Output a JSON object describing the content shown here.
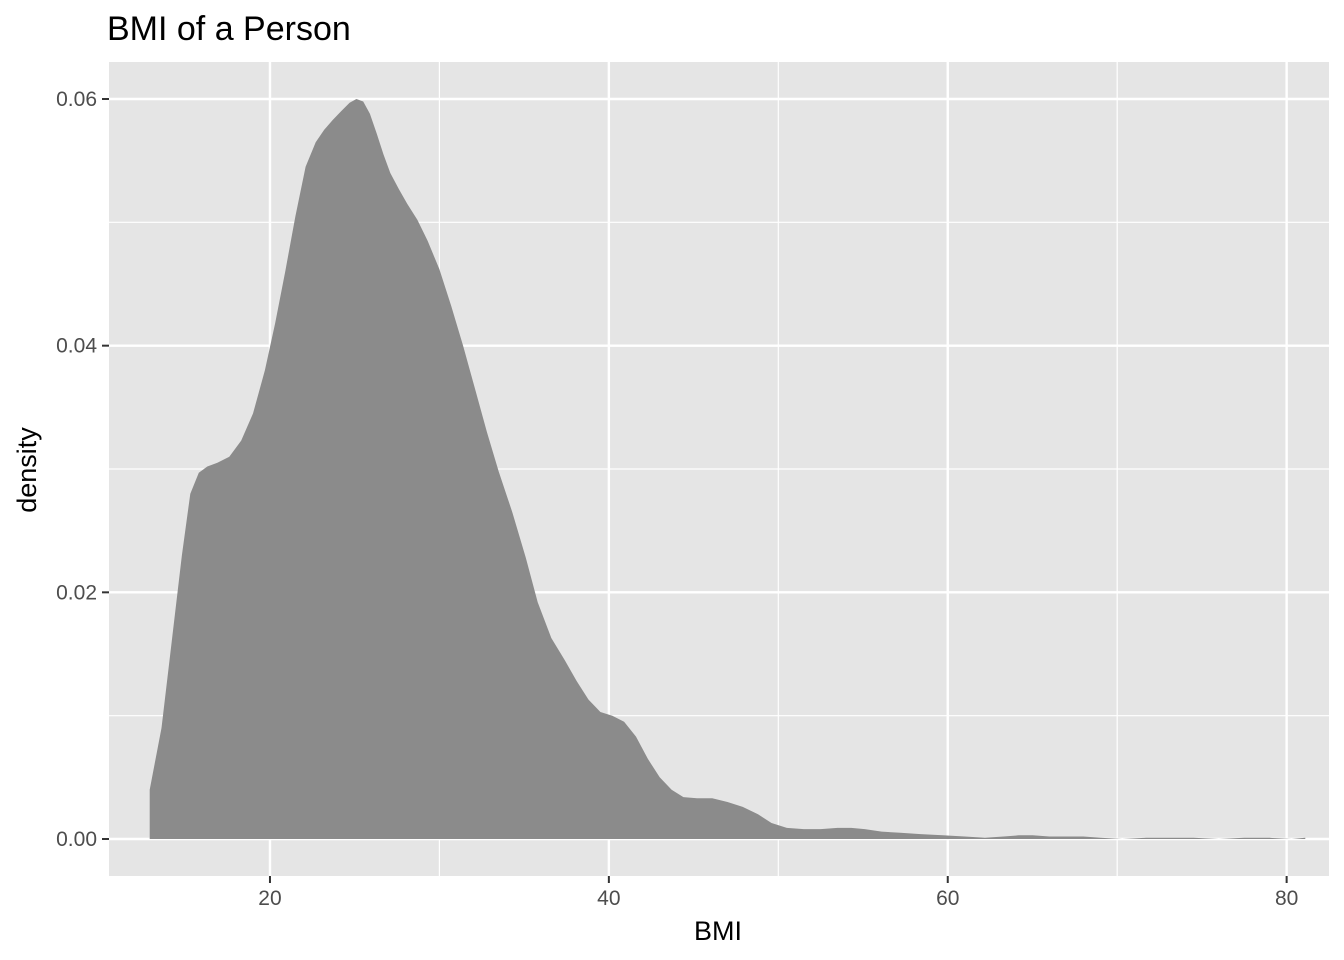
{
  "chart_data": {
    "type": "area",
    "title": "BMI of a Person",
    "xlabel": "BMI",
    "ylabel": "density",
    "xlim": [
      10.5,
      82.5
    ],
    "ylim": [
      -0.003,
      0.063
    ],
    "x_ticks": [
      20,
      40,
      60,
      80
    ],
    "y_ticks": [
      0.0,
      0.02,
      0.04,
      0.06
    ],
    "x_tick_labels": [
      "20",
      "40",
      "60",
      "80"
    ],
    "y_tick_labels": [
      "0.00",
      "0.02",
      "0.04",
      "0.06"
    ],
    "grid": true,
    "colors": {
      "panel": "#e5e5e5",
      "grid": "#ffffff",
      "fill": "#878787",
      "tick_text": "#4d4d4d"
    },
    "series": [
      {
        "x": [
          12.9,
          12.9,
          13.6,
          14.2,
          14.8,
          15.3,
          15.8,
          16.3,
          16.9,
          17.6,
          18.3,
          19.0,
          19.7,
          20.3,
          20.9,
          21.5,
          22.1,
          22.7,
          23.2,
          23.7,
          24.2,
          24.7,
          25.1,
          25.5,
          25.9,
          26.3,
          26.7,
          27.1,
          27.6,
          28.1,
          28.7,
          29.3,
          30.0,
          30.7,
          31.4,
          32.1,
          32.8,
          33.5,
          34.3,
          35.1,
          35.8,
          36.6,
          37.4,
          38.1,
          38.8,
          39.5,
          40.2,
          40.9,
          41.6,
          42.3,
          43.0,
          43.7,
          44.4,
          45.2,
          46.1,
          47.0,
          47.9,
          48.8,
          49.6,
          50.5,
          51.5,
          52.5,
          53.5,
          54.3,
          55.1,
          56.1,
          57.2,
          58.4,
          59.7,
          61.0,
          62.2,
          63.3,
          64.2,
          65.0,
          66.0,
          67.0,
          68.0,
          69.0,
          70.3,
          71.7,
          73.0,
          74.5,
          76.0,
          77.5,
          79.0,
          80.3,
          81.1
        ],
        "y": [
          0.0,
          0.004,
          0.009,
          0.016,
          0.023,
          0.028,
          0.0297,
          0.0302,
          0.0305,
          0.031,
          0.0323,
          0.0345,
          0.038,
          0.0418,
          0.046,
          0.0505,
          0.0545,
          0.0565,
          0.0575,
          0.0583,
          0.059,
          0.0597,
          0.06,
          0.0598,
          0.0588,
          0.0572,
          0.0555,
          0.054,
          0.0527,
          0.0515,
          0.0502,
          0.0485,
          0.0462,
          0.0432,
          0.04,
          0.0365,
          0.033,
          0.0298,
          0.0265,
          0.0228,
          0.0192,
          0.0163,
          0.0145,
          0.0128,
          0.0113,
          0.0103,
          0.01,
          0.0095,
          0.0083,
          0.0065,
          0.005,
          0.004,
          0.0034,
          0.0033,
          0.0033,
          0.003,
          0.0026,
          0.002,
          0.0013,
          0.0009,
          0.0008,
          0.0008,
          0.0009,
          0.0009,
          0.0008,
          0.0006,
          0.0005,
          0.0004,
          0.0003,
          0.0002,
          0.0001,
          0.0002,
          0.0003,
          0.0003,
          0.0002,
          0.0002,
          0.0002,
          0.0001,
          0.0,
          0.0001,
          0.0001,
          0.0001,
          0.0,
          0.0001,
          0.0001,
          0.0,
          0.0001
        ]
      }
    ]
  }
}
